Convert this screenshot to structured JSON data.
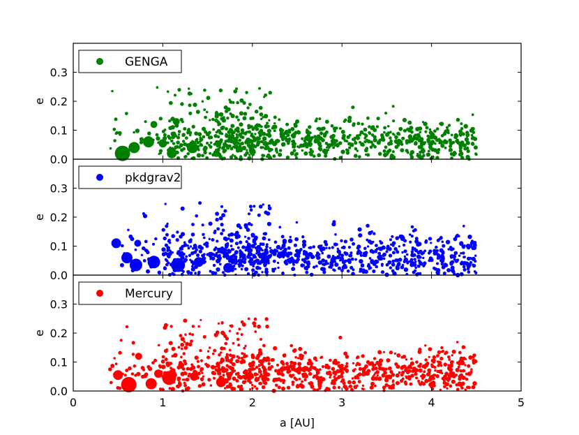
{
  "chart_data": [
    {
      "type": "scatter",
      "legend": "GENGA",
      "color": "#008000",
      "xlabel": "",
      "ylabel": "e",
      "xlim": [
        0,
        5
      ],
      "ylim": [
        0,
        0.4
      ],
      "yticks": [
        "0.0",
        "0.1",
        "0.2",
        "0.3"
      ],
      "big_points": [
        {
          "x": 0.55,
          "y": 0.02,
          "s": 11
        },
        {
          "x": 0.68,
          "y": 0.04,
          "s": 8
        },
        {
          "x": 0.84,
          "y": 0.06,
          "s": 8
        },
        {
          "x": 1.0,
          "y": 0.055,
          "s": 6
        },
        {
          "x": 1.1,
          "y": 0.02,
          "s": 7
        },
        {
          "x": 1.33,
          "y": 0.04,
          "s": 8
        },
        {
          "x": 0.9,
          "y": 0.12,
          "s": 5
        },
        {
          "x": 1.15,
          "y": 0.13,
          "s": 5
        },
        {
          "x": 1.6,
          "y": 0.02,
          "s": 5
        }
      ]
    },
    {
      "type": "scatter",
      "legend": "pkdgrav2",
      "color": "#0000ff",
      "xlabel": "",
      "ylabel": "e",
      "xlim": [
        0,
        5
      ],
      "ylim": [
        0,
        0.4
      ],
      "yticks": [
        "0.0",
        "0.1",
        "0.2",
        "0.3"
      ],
      "big_points": [
        {
          "x": 0.48,
          "y": 0.11,
          "s": 7
        },
        {
          "x": 0.6,
          "y": 0.06,
          "s": 8
        },
        {
          "x": 0.7,
          "y": 0.035,
          "s": 9
        },
        {
          "x": 0.9,
          "y": 0.045,
          "s": 9
        },
        {
          "x": 1.17,
          "y": 0.035,
          "s": 10
        },
        {
          "x": 1.4,
          "y": 0.045,
          "s": 7
        },
        {
          "x": 1.73,
          "y": 0.025,
          "s": 7
        },
        {
          "x": 0.72,
          "y": 0.11,
          "s": 5
        }
      ]
    },
    {
      "type": "scatter",
      "legend": "Mercury",
      "color": "#ff0000",
      "xlabel": "a [AU]",
      "ylabel": "e",
      "xlim": [
        0,
        5
      ],
      "ylim": [
        0,
        0.4
      ],
      "xticks": [
        "0",
        "1",
        "2",
        "3",
        "4",
        "5"
      ],
      "yticks": [
        "0.0",
        "0.1",
        "0.2",
        "0.3"
      ],
      "big_points": [
        {
          "x": 0.62,
          "y": 0.022,
          "s": 11
        },
        {
          "x": 0.5,
          "y": 0.055,
          "s": 7
        },
        {
          "x": 0.87,
          "y": 0.025,
          "s": 8
        },
        {
          "x": 1.07,
          "y": 0.045,
          "s": 10
        },
        {
          "x": 0.95,
          "y": 0.06,
          "s": 6
        },
        {
          "x": 1.65,
          "y": 0.03,
          "s": 7
        },
        {
          "x": 1.35,
          "y": 0.05,
          "s": 6
        },
        {
          "x": 0.73,
          "y": 0.12,
          "s": 5
        }
      ]
    }
  ]
}
